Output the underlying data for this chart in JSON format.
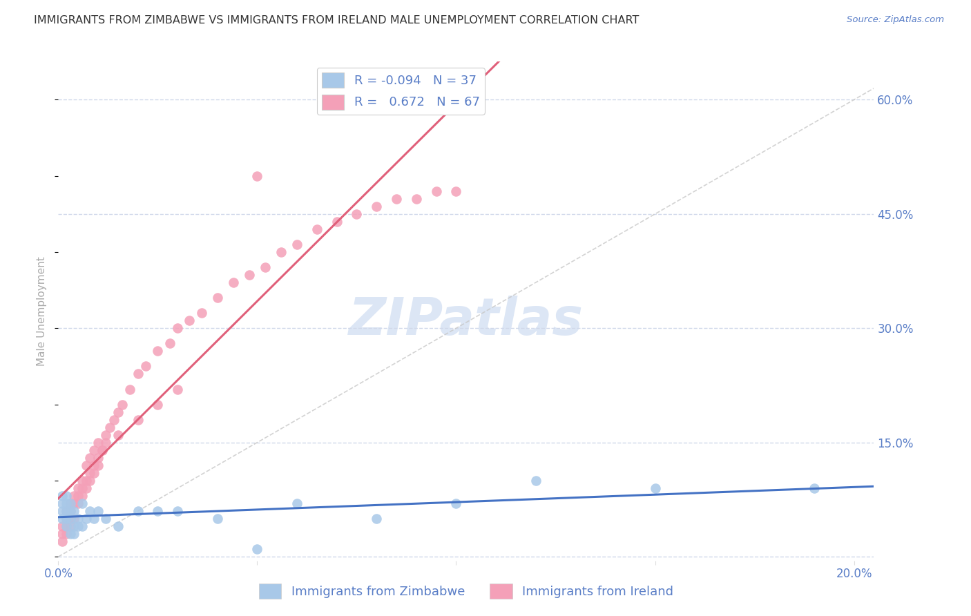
{
  "title": "IMMIGRANTS FROM ZIMBABWE VS IMMIGRANTS FROM IRELAND MALE UNEMPLOYMENT CORRELATION CHART",
  "source": "Source: ZipAtlas.com",
  "ylabel": "Male Unemployment",
  "xlim": [
    0.0,
    0.205
  ],
  "ylim": [
    -0.005,
    0.65
  ],
  "xticks": [
    0.0,
    0.05,
    0.1,
    0.15,
    0.2
  ],
  "xtick_labels": [
    "0.0%",
    "",
    "",
    "",
    "20.0%"
  ],
  "yticks_right": [
    0.0,
    0.15,
    0.3,
    0.45,
    0.6
  ],
  "ytick_labels_right": [
    "",
    "15.0%",
    "30.0%",
    "45.0%",
    "60.0%"
  ],
  "legend_R_N": [
    {
      "R": "-0.094",
      "N": "37"
    },
    {
      "R": " 0.672",
      "N": "67"
    }
  ],
  "zimbabwe_color": "#a8c8e8",
  "ireland_color": "#f4a0b8",
  "zimbabwe_line_color": "#4472c4",
  "ireland_line_color": "#e0607a",
  "ref_line_color": "#c8c8c8",
  "background_color": "#ffffff",
  "grid_color": "#d0d8ea",
  "title_color": "#333333",
  "axis_label_color": "#5a7ec7",
  "ylabel_color": "#aaaaaa",
  "watermark_color": "#dce6f5",
  "title_fontsize": 11.5,
  "axis_label_fontsize": 11,
  "tick_fontsize": 12,
  "legend_fontsize": 13,
  "zimbabwe_x": [
    0.001,
    0.001,
    0.001,
    0.001,
    0.002,
    0.002,
    0.002,
    0.002,
    0.002,
    0.003,
    0.003,
    0.003,
    0.003,
    0.004,
    0.004,
    0.004,
    0.005,
    0.005,
    0.006,
    0.006,
    0.007,
    0.008,
    0.009,
    0.01,
    0.012,
    0.015,
    0.02,
    0.025,
    0.03,
    0.04,
    0.05,
    0.06,
    0.08,
    0.1,
    0.12,
    0.15,
    0.19
  ],
  "zimbabwe_y": [
    0.05,
    0.06,
    0.07,
    0.08,
    0.04,
    0.05,
    0.06,
    0.07,
    0.08,
    0.03,
    0.05,
    0.06,
    0.07,
    0.03,
    0.04,
    0.06,
    0.04,
    0.05,
    0.04,
    0.07,
    0.05,
    0.06,
    0.05,
    0.06,
    0.05,
    0.04,
    0.06,
    0.06,
    0.06,
    0.05,
    0.01,
    0.07,
    0.05,
    0.07,
    0.1,
    0.09,
    0.09
  ],
  "ireland_x": [
    0.001,
    0.001,
    0.001,
    0.002,
    0.002,
    0.002,
    0.003,
    0.003,
    0.003,
    0.004,
    0.004,
    0.005,
    0.005,
    0.006,
    0.006,
    0.007,
    0.007,
    0.008,
    0.008,
    0.009,
    0.009,
    0.01,
    0.01,
    0.011,
    0.012,
    0.013,
    0.014,
    0.015,
    0.016,
    0.018,
    0.02,
    0.022,
    0.025,
    0.028,
    0.03,
    0.033,
    0.036,
    0.04,
    0.044,
    0.048,
    0.052,
    0.056,
    0.06,
    0.065,
    0.07,
    0.075,
    0.08,
    0.085,
    0.09,
    0.095,
    0.1,
    0.002,
    0.003,
    0.004,
    0.005,
    0.006,
    0.007,
    0.008,
    0.009,
    0.01,
    0.011,
    0.012,
    0.015,
    0.02,
    0.025,
    0.03,
    0.05
  ],
  "ireland_y": [
    0.02,
    0.03,
    0.04,
    0.03,
    0.05,
    0.06,
    0.04,
    0.06,
    0.07,
    0.05,
    0.08,
    0.07,
    0.09,
    0.08,
    0.1,
    0.09,
    0.12,
    0.1,
    0.13,
    0.11,
    0.14,
    0.12,
    0.15,
    0.14,
    0.16,
    0.17,
    0.18,
    0.19,
    0.2,
    0.22,
    0.24,
    0.25,
    0.27,
    0.28,
    0.3,
    0.31,
    0.32,
    0.34,
    0.36,
    0.37,
    0.38,
    0.4,
    0.41,
    0.43,
    0.44,
    0.45,
    0.46,
    0.47,
    0.47,
    0.48,
    0.48,
    0.04,
    0.05,
    0.07,
    0.08,
    0.09,
    0.1,
    0.11,
    0.12,
    0.13,
    0.14,
    0.15,
    0.16,
    0.18,
    0.2,
    0.22,
    0.5
  ]
}
